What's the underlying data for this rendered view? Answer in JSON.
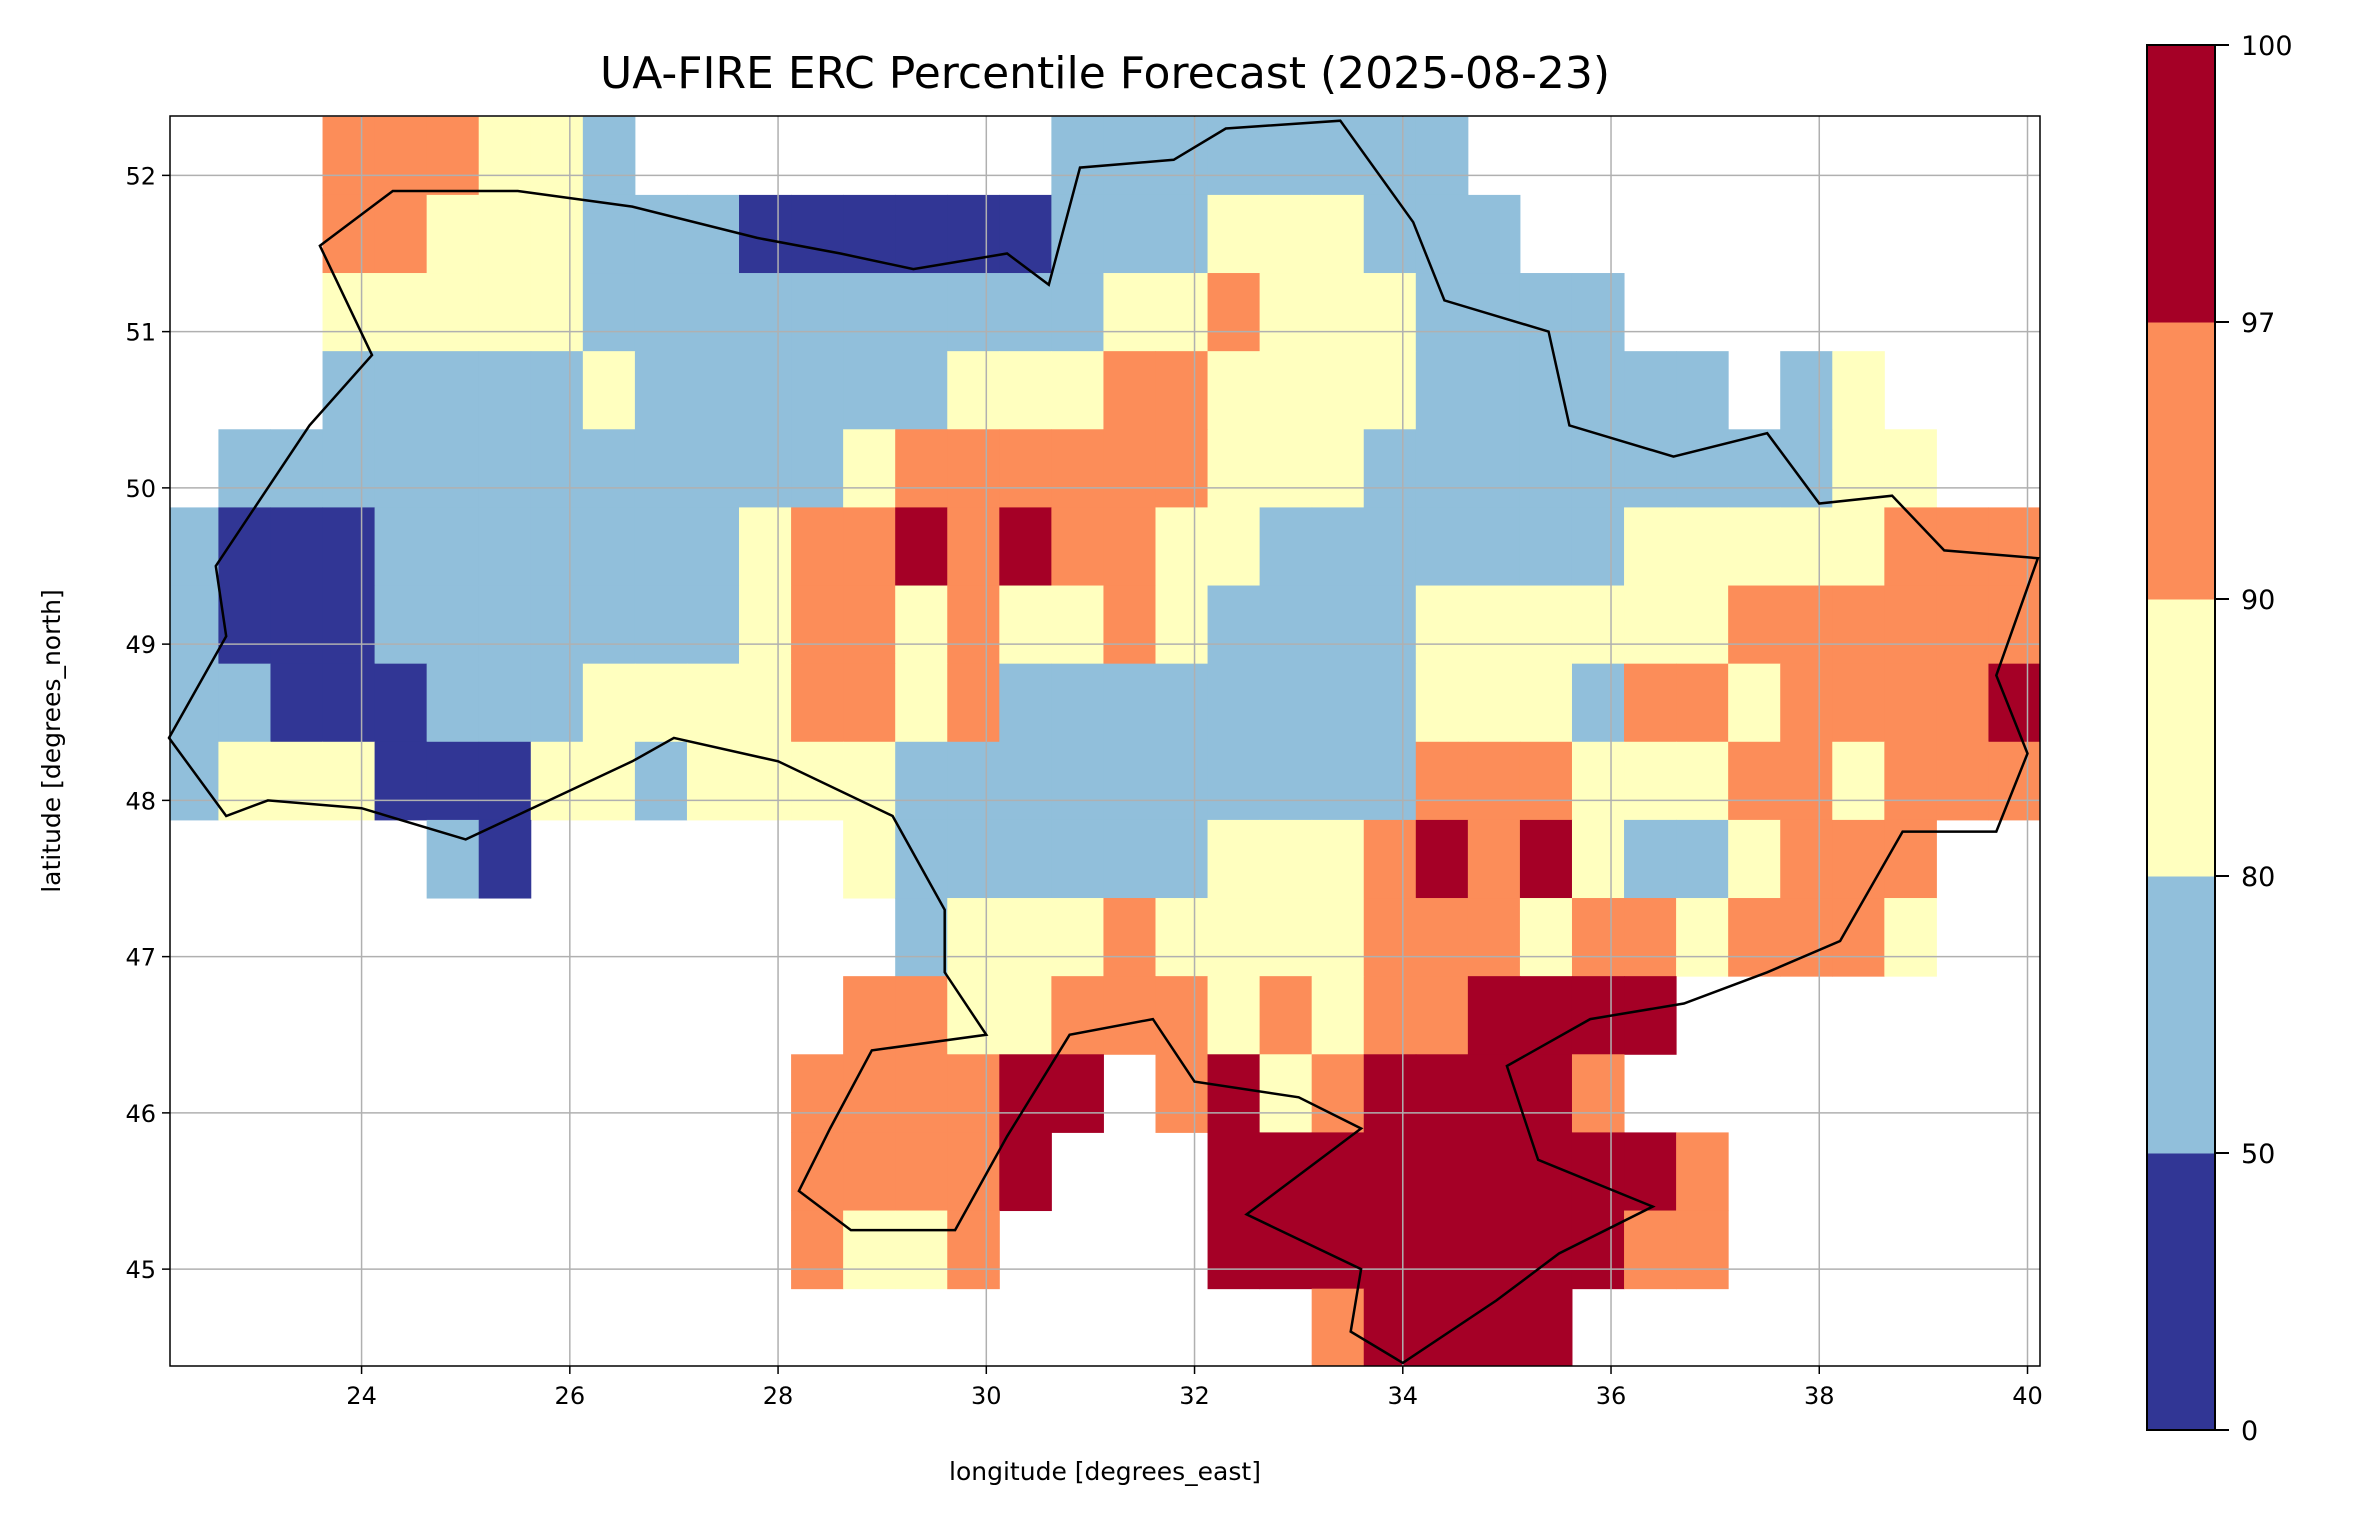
{
  "chart_data": {
    "type": "heatmap",
    "title": "UA-FIRE ERC Percentile Forecast (2025-08-23)",
    "xlabel": "longitude [degrees_east]",
    "ylabel": "latitude [degrees_north]",
    "xlim": [
      22.16,
      40.12
    ],
    "ylim": [
      44.38,
      52.38
    ],
    "xticks": [
      24,
      26,
      28,
      30,
      32,
      34,
      36,
      38,
      40
    ],
    "yticks": [
      45,
      46,
      47,
      48,
      49,
      50,
      51,
      52
    ],
    "grid": true,
    "colorbar": {
      "boundaries": [
        0,
        50,
        80,
        90,
        97,
        100
      ],
      "tick_labels": [
        "0",
        "50",
        "80",
        "90",
        "97",
        "100"
      ],
      "colors": [
        "#313695",
        "#91bfdb",
        "#ffffbf",
        "#fc8d59",
        "#a50026"
      ]
    },
    "grid_cells": {
      "lon_start": 22.125,
      "lat_top": 52.375,
      "cell_deg": 0.5,
      "legend": "0=no data, 1=0-50, 2=50-80, 3=80-90, 4=90-97, 5=97-100",
      "rows": [
        "000444332000000002222222200000000000",
        "000443332221111112223332220000000000",
        "000333332222222222334333222200000000",
        "000222223222222333443333222222023000",
        "022222222222234444443332222222223300",
        "211122222223445454433222222233333444",
        "211122222223443433432222333333444444",
        "221112223333443422222222333244344445",
        "233311133233332222222222444333443444",
        "000002100000032222223334545322344400",
        "000000000000002333433334443443444300",
        "000000000000044334443434455550000000",
        "000000000000444455045345555400000000",
        "000000000000444450005555555554000000",
        "000000000000433400005555555544000000",
        "000000000000000000000045555000000000"
      ]
    }
  }
}
